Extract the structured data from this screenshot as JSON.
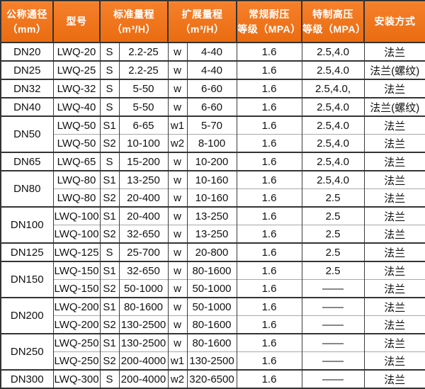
{
  "colors": {
    "orange_light": "#f6802b",
    "orange_dark": "#ea6c10",
    "header_text": "#ffffff",
    "body_text": "#111111",
    "border_dark": "#333333",
    "border_mid": "#3c3c3c",
    "border_light": "#a8a8a8"
  },
  "table": {
    "header": {
      "columns": [
        {
          "line1": "公称通径",
          "line2": "（mm）"
        },
        {
          "line1": "型号",
          "line2": ""
        },
        {
          "line1": "标准量程",
          "line2": "（m³/H）"
        },
        {
          "line1": "扩展量程",
          "line2": "（m³/H）"
        },
        {
          "line1": "常规耐压",
          "line2": "等级（MPA）"
        },
        {
          "line1": "特制高压",
          "line2": "等级（MPA）"
        },
        {
          "line1": "安装方式",
          "line2": ""
        }
      ]
    },
    "groups": [
      {
        "dn": "DN20",
        "rows": [
          {
            "model": "LWQ-20",
            "s": "S",
            "std": "2.2-25",
            "w": "w",
            "ext": "4-40",
            "normal": "1.6",
            "high": "2.5,4.0",
            "install": "法兰"
          }
        ]
      },
      {
        "dn": "DN25",
        "rows": [
          {
            "model": "LWQ-25",
            "s": "S",
            "std": "2.2-25",
            "w": "w",
            "ext": "4-40",
            "normal": "1.6",
            "high": "2.5,4.0",
            "install": "法兰(螺纹)"
          }
        ]
      },
      {
        "dn": "DN32",
        "rows": [
          {
            "model": "LWQ-32",
            "s": "S",
            "std": "5-50",
            "w": "w",
            "ext": "6-60",
            "normal": "1.6",
            "high": "2.5,4.0,",
            "install": "法兰"
          }
        ]
      },
      {
        "dn": "DN40",
        "rows": [
          {
            "model": "LWQ-40",
            "s": "S",
            "std": "5-50",
            "w": "w",
            "ext": "6-60",
            "normal": "1.6",
            "high": "2.5,4.0",
            "install": "法兰(螺纹)"
          }
        ]
      },
      {
        "dn": "DN50",
        "rows": [
          {
            "model": "LWQ-50",
            "s": "S1",
            "std": "6-65",
            "w": "w1",
            "ext": "5-70",
            "normal": "1.6",
            "high": "2.5,4.0",
            "install": "法兰"
          },
          {
            "model": "LWQ-50",
            "s": "S2",
            "std": "10-100",
            "w": "w2",
            "ext": "8-100",
            "normal": "1.6",
            "high": "2.5,4.0",
            "install": "法兰"
          }
        ]
      },
      {
        "dn": "DN65",
        "rows": [
          {
            "model": "LWQ-65",
            "s": "S",
            "std": "15-200",
            "w": "w",
            "ext": "10-200",
            "normal": "1.6",
            "high": "2.5,4.0",
            "install": "法兰"
          }
        ]
      },
      {
        "dn": "DN80",
        "rows": [
          {
            "model": "LWQ-80",
            "s": "S1",
            "std": "13-250",
            "w": "w",
            "ext": "10-160",
            "normal": "1.6",
            "high": "2.5,4.0",
            "install": "法兰"
          },
          {
            "model": "LWQ-80",
            "s": "S2",
            "std": "20-400",
            "w": "w",
            "ext": "10-160",
            "normal": "1.6",
            "high": "2.5",
            "install": "法兰"
          }
        ]
      },
      {
        "dn": "DN100",
        "rows": [
          {
            "model": "LWQ-100",
            "s": "S1",
            "std": "20-400",
            "w": "w",
            "ext": "13-250",
            "normal": "1.6",
            "high": "2.5",
            "install": "法兰"
          },
          {
            "model": "LWQ-100",
            "s": "S2",
            "std": "32-650",
            "w": "w",
            "ext": "13-250",
            "normal": "1.6",
            "high": "2.5",
            "install": "法兰"
          }
        ]
      },
      {
        "dn": "DN125",
        "rows": [
          {
            "model": "LWQ-125",
            "s": "S",
            "std": "25-700",
            "w": "w",
            "ext": "20-800",
            "normal": "1.6",
            "high": "2.5",
            "install": "法兰"
          }
        ]
      },
      {
        "dn": "DN150",
        "rows": [
          {
            "model": "LWQ-150",
            "s": "S1",
            "std": "32-650",
            "w": "w",
            "ext": "80-1600",
            "normal": "1.6",
            "high": "2.5",
            "install": "法兰"
          },
          {
            "model": "LWQ-150",
            "s": "S2",
            "std": "50-1000",
            "w": "w",
            "ext": "50-1000",
            "normal": "1.6",
            "high": "——",
            "install": "法兰"
          }
        ]
      },
      {
        "dn": "DN200",
        "rows": [
          {
            "model": "LWQ-200",
            "s": "S1",
            "std": "80-1600",
            "w": "w",
            "ext": "50-1000",
            "normal": "1.6",
            "high": "——",
            "install": "法兰"
          },
          {
            "model": "LWQ-200",
            "s": "S2",
            "std": "130-2500",
            "w": "w",
            "ext": "80-1600",
            "normal": "1.6",
            "high": "——",
            "install": "法兰"
          }
        ]
      },
      {
        "dn": "DN250",
        "rows": [
          {
            "model": "LWQ-250",
            "s": "S1",
            "std": "130-2500",
            "w": "w",
            "ext": "80-1600",
            "normal": "1.6",
            "high": "——",
            "install": "法兰"
          },
          {
            "model": "LWQ-250",
            "s": "S2",
            "std": "200-4000",
            "w": "w1",
            "ext": "130-2500",
            "normal": "1.6",
            "high": "——",
            "install": "法兰"
          }
        ]
      },
      {
        "dn": "DN300",
        "rows": [
          {
            "model": "LWQ-300",
            "s": "S",
            "std": "200-4000",
            "w": "w2",
            "ext": "320-6500",
            "normal": "1.6",
            "high": "——",
            "install": "法兰"
          }
        ]
      }
    ]
  }
}
